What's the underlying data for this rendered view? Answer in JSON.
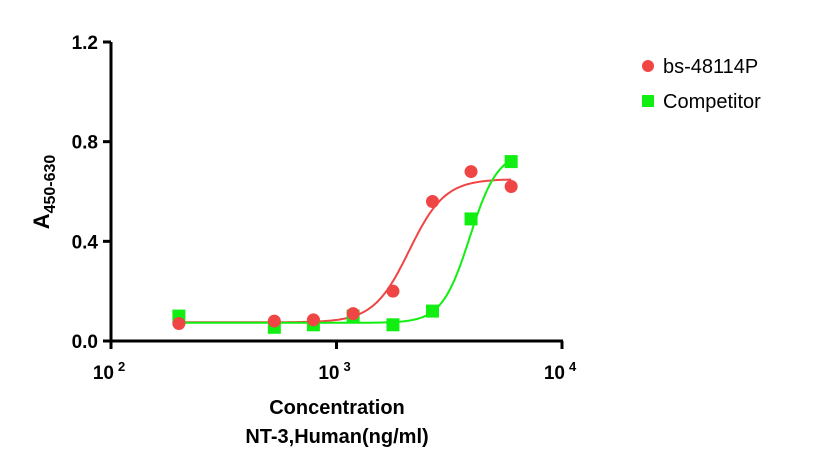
{
  "chart_data": {
    "type": "scatter",
    "title": "",
    "xlabel": "Concentration",
    "xlabel_line2": "NT-3,Human(ng/ml)",
    "ylabel_main": "A",
    "ylabel_sub": "450-630",
    "xscale": "log",
    "xlim": [
      100,
      10000
    ],
    "ylim": [
      0.0,
      1.2
    ],
    "x_ticks": [
      {
        "value": 100,
        "base": "10",
        "exp": "2"
      },
      {
        "value": 1000,
        "base": "10",
        "exp": "3"
      },
      {
        "value": 10000,
        "base": "10",
        "exp": "4"
      }
    ],
    "y_ticks": [
      {
        "value": 0.0,
        "label": "0.0"
      },
      {
        "value": 0.4,
        "label": "0.4"
      },
      {
        "value": 0.8,
        "label": "0.8"
      },
      {
        "value": 1.2,
        "label": "1.2"
      }
    ],
    "grid": false,
    "legend_position": "top-right",
    "series": [
      {
        "name": "bs-48114P",
        "color": "#f04545",
        "marker": "circle",
        "x": [
          200,
          530,
          790,
          1185,
          1780,
          2665,
          3950,
          5950
        ],
        "y": [
          0.07,
          0.08,
          0.085,
          0.11,
          0.2,
          0.56,
          0.68,
          0.62
        ],
        "fit": {
          "type": "4PL",
          "bottom": 0.075,
          "top": 0.65,
          "ec50": 2100,
          "hill": 5.5
        }
      },
      {
        "name": "Competitor",
        "color": "#11ee11",
        "marker": "square",
        "x": [
          200,
          530,
          790,
          1185,
          1780,
          2665,
          3950,
          5950
        ],
        "y": [
          0.1,
          0.055,
          0.065,
          0.1,
          0.065,
          0.12,
          0.49,
          0.72
        ],
        "fit": {
          "type": "4PL",
          "bottom": 0.073,
          "top": 0.76,
          "ec50": 3900,
          "hill": 7
        }
      }
    ]
  }
}
